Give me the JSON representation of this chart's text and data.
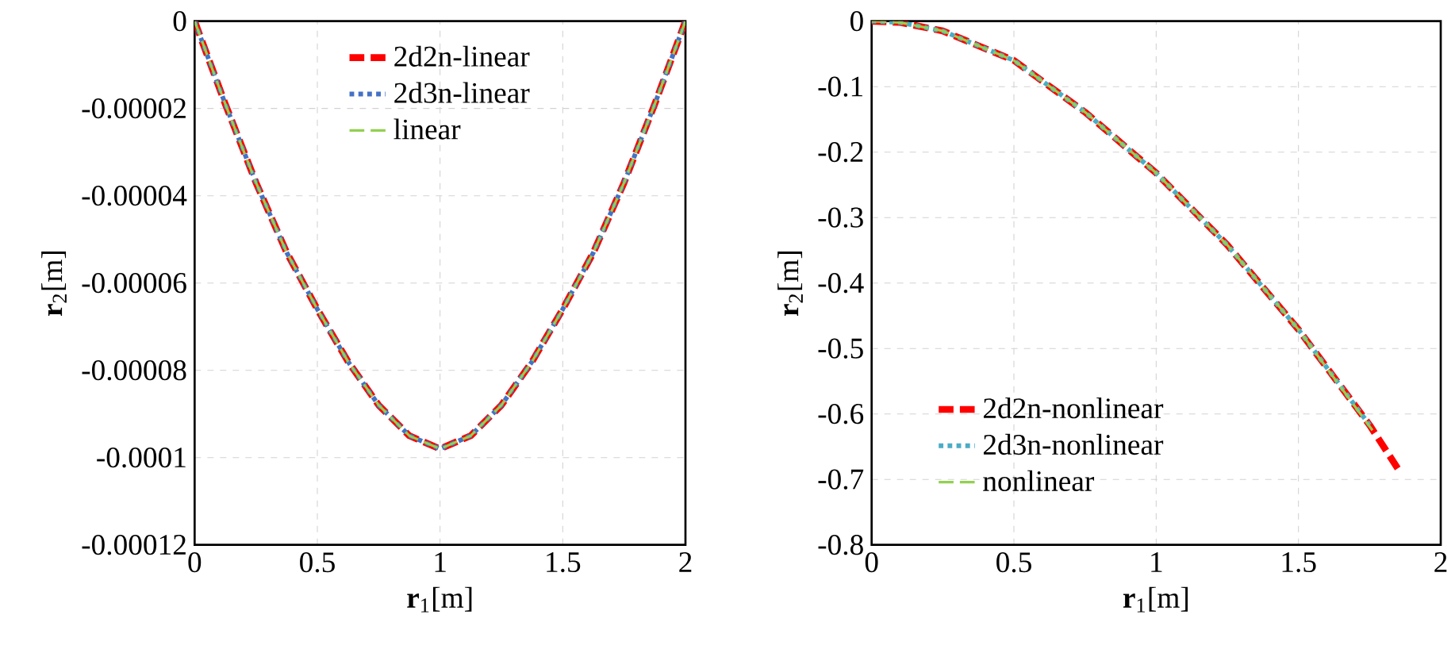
{
  "chart_data": [
    {
      "type": "line",
      "xlabel": "**r**$_{1}$[m]",
      "ylabel": "**r**$_{2}$[m]",
      "xlim": [
        0,
        2
      ],
      "xticks": [
        0,
        0.5,
        1,
        1.5,
        2
      ],
      "ylim": [
        -0.00012,
        0
      ],
      "yticks": [
        {
          "value": -0.00012,
          "label": "-0.00012"
        },
        {
          "value": -0.0001,
          "label": "-0.0001"
        },
        {
          "value": -8e-05,
          "label": "-0.00008"
        },
        {
          "value": -6e-05,
          "label": "-0.00006"
        },
        {
          "value": -4e-05,
          "label": "-0.00004"
        },
        {
          "value": -2e-05,
          "label": "-0.00002"
        },
        0
      ],
      "grid": true,
      "legend": "top",
      "x": [
        0,
        0.125,
        0.25,
        0.375,
        0.5,
        0.625,
        0.75,
        0.875,
        1,
        1.125,
        1.25,
        1.375,
        1.5,
        1.625,
        1.75,
        1.875,
        2
      ],
      "series": [
        {
          "name": "2d2n-linear",
          "color": "#ff0000",
          "line_style": "dashed",
          "values": [
            0,
            -1.9e-05,
            -3.7e-05,
            -5.3e-05,
            -6.6e-05,
            -7.8e-05,
            -8.8e-05,
            -9.5e-05,
            -9.8e-05,
            -9.5e-05,
            -8.8e-05,
            -7.8e-05,
            -6.6e-05,
            -5.3e-05,
            -3.7e-05,
            -1.9e-05,
            0
          ]
        },
        {
          "name": "2d3n-linear",
          "color": "#4472c4",
          "line_style": "dotted",
          "values": [
            0,
            -1.9e-05,
            -3.7e-05,
            -5.3e-05,
            -6.6e-05,
            -7.8e-05,
            -8.8e-05,
            -9.5e-05,
            -9.8e-05,
            -9.5e-05,
            -8.8e-05,
            -7.8e-05,
            -6.6e-05,
            -5.3e-05,
            -3.7e-05,
            -1.9e-05,
            0
          ]
        },
        {
          "name": "linear",
          "color": "#92d050",
          "line_style": "dashed",
          "values": [
            0,
            -1.9e-05,
            -3.7e-05,
            -5.3e-05,
            -6.6e-05,
            -7.8e-05,
            -8.8e-05,
            -9.5e-05,
            -9.8e-05,
            -9.5e-05,
            -8.8e-05,
            -7.8e-05,
            -6.6e-05,
            -5.3e-05,
            -3.7e-05,
            -1.9e-05,
            0
          ]
        }
      ]
    },
    {
      "type": "line",
      "xlabel": "**r**$_{1}$[m]",
      "ylabel": "**r**$_{2}$[m]",
      "xlim": [
        0,
        2
      ],
      "xticks": [
        0,
        0.5,
        1,
        1.5,
        2
      ],
      "ylim": [
        -0.8,
        0
      ],
      "yticks": [
        -0.8,
        -0.7,
        -0.6,
        -0.5,
        -0.4,
        -0.3,
        -0.2,
        -0.1,
        0
      ],
      "grid": true,
      "legend": "bottom left",
      "series": [
        {
          "name": "2d2n-nonlinear",
          "color": "#ff0000",
          "line_style": "dashed",
          "x": [
            0,
            0.1,
            0.25,
            0.5,
            0.75,
            1,
            1.25,
            1.5,
            1.75,
            1.85
          ],
          "values": [
            0,
            -0.002,
            -0.015,
            -0.06,
            -0.139,
            -0.232,
            -0.342,
            -0.471,
            -0.617,
            -0.684
          ]
        },
        {
          "name": "2d3n-nonlinear",
          "color": "#4bacc6",
          "line_style": "dotted",
          "x": [
            0,
            0.1,
            0.25,
            0.5,
            0.75,
            1,
            1.25,
            1.5,
            1.75
          ],
          "values": [
            0,
            -0.002,
            -0.015,
            -0.06,
            -0.139,
            -0.232,
            -0.342,
            -0.471,
            -0.617
          ]
        },
        {
          "name": "nonlinear",
          "color": "#92d050",
          "line_style": "dashed",
          "x": [
            0,
            0.1,
            0.25,
            0.5,
            0.75,
            1,
            1.25,
            1.5,
            1.76
          ],
          "values": [
            0,
            -0.002,
            -0.015,
            -0.06,
            -0.139,
            -0.232,
            -0.342,
            -0.471,
            -0.625
          ]
        }
      ]
    }
  ]
}
